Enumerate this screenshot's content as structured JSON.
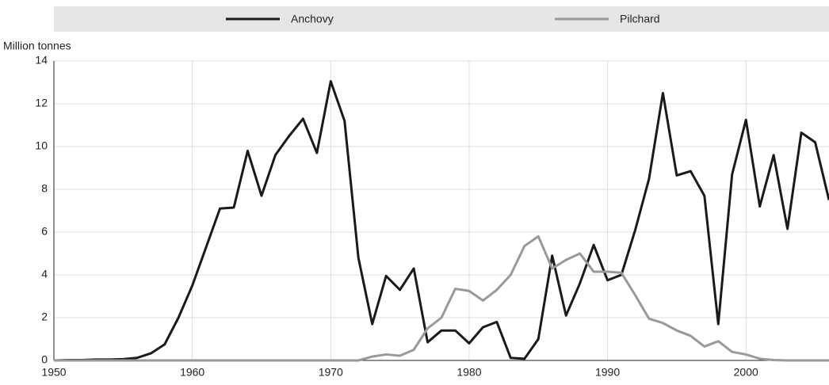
{
  "chart_data": {
    "type": "line",
    "y_label": "Million tonnes",
    "x": [
      1950,
      1951,
      1952,
      1953,
      1954,
      1955,
      1956,
      1957,
      1958,
      1959,
      1960,
      1961,
      1962,
      1963,
      1964,
      1965,
      1966,
      1967,
      1968,
      1969,
      1970,
      1971,
      1972,
      1973,
      1974,
      1975,
      1976,
      1977,
      1978,
      1979,
      1980,
      1981,
      1982,
      1983,
      1984,
      1985,
      1986,
      1987,
      1988,
      1989,
      1990,
      1991,
      1992,
      1993,
      1994,
      1995,
      1996,
      1997,
      1998,
      1999,
      2000,
      2001,
      2002,
      2003,
      2004,
      2005,
      2006
    ],
    "series": [
      {
        "name": "Anchovy",
        "color": "#1a1a1a",
        "values": [
          0,
          0.02,
          0.02,
          0.04,
          0.04,
          0.06,
          0.12,
          0.33,
          0.75,
          2.0,
          3.5,
          5.3,
          7.1,
          7.15,
          9.8,
          7.7,
          9.6,
          10.5,
          11.3,
          9.7,
          13.05,
          11.2,
          4.8,
          1.7,
          3.95,
          3.3,
          4.3,
          0.85,
          1.4,
          1.4,
          0.8,
          1.55,
          1.8,
          0.12,
          0.08,
          1.0,
          4.9,
          2.1,
          3.6,
          5.4,
          3.75,
          4.0,
          6.1,
          8.5,
          12.5,
          8.65,
          8.85,
          7.7,
          1.7,
          8.7,
          11.25,
          7.2,
          9.6,
          6.15,
          10.65,
          10.2,
          7.5
        ]
      },
      {
        "name": "Pilchard",
        "color": "#999999",
        "values": [
          0,
          0,
          0,
          0,
          0,
          0,
          0,
          0,
          0,
          0,
          0,
          0,
          0,
          0,
          0,
          0,
          0,
          0,
          0,
          0,
          0,
          0,
          0,
          0.18,
          0.28,
          0.22,
          0.5,
          1.5,
          2.0,
          3.35,
          3.25,
          2.8,
          3.3,
          4.0,
          5.35,
          5.8,
          4.3,
          4.7,
          5.0,
          4.15,
          4.15,
          4.1,
          3.05,
          1.95,
          1.75,
          1.4,
          1.15,
          0.65,
          0.9,
          0.4,
          0.28,
          0.08,
          0.02,
          0,
          0,
          0,
          0
        ]
      }
    ],
    "xlim": [
      1950,
      2006
    ],
    "xticks": [
      1950,
      1960,
      1970,
      1980,
      1990,
      2000
    ],
    "ylim": [
      0,
      14
    ],
    "yticks": [
      0,
      2,
      4,
      6,
      8,
      10,
      12,
      14
    ],
    "grid": true,
    "legend": "top"
  }
}
